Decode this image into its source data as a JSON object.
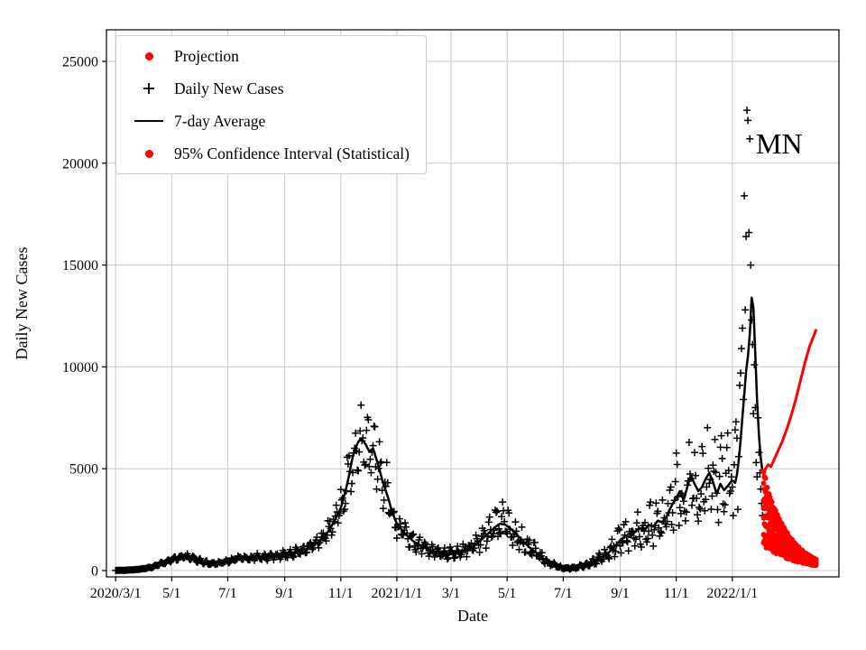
{
  "figure": {
    "annotation": "MN",
    "xlabel": "Date",
    "ylabel": "Daily New Cases",
    "background": "#ffffff"
  },
  "legend": {
    "items": [
      {
        "label": "Projection",
        "marker": "red-dot"
      },
      {
        "label": "Daily New Cases",
        "marker": "black-plus"
      },
      {
        "label": "7-day Average",
        "marker": "black-line"
      },
      {
        "label": "95% Confidence Interval (Statistical)",
        "marker": "red-dot"
      }
    ]
  },
  "chart_data": {
    "type": "line+scatter",
    "title": "",
    "xlabel": "Date",
    "ylabel": "Daily New Cases",
    "annotation": "MN",
    "x_unit": "days_since_2020-03-01",
    "xlim_days": [
      -10,
      787
    ],
    "ylim": [
      -310,
      26550
    ],
    "grid": true,
    "legend_position": "upper-left",
    "colors": {
      "daily_cases": "#000000",
      "seven_day_average": "#000000",
      "projection": "#ff0000",
      "confidence_interval": "#ff0000",
      "grid": "#c8c8c8",
      "axes": "#000000"
    },
    "x_ticks": [
      {
        "day": 0,
        "label": "2020/3/1"
      },
      {
        "day": 61,
        "label": "5/1"
      },
      {
        "day": 122,
        "label": "7/1"
      },
      {
        "day": 184,
        "label": "9/1"
      },
      {
        "day": 245,
        "label": "11/1"
      },
      {
        "day": 306,
        "label": "2021/1/1"
      },
      {
        "day": 365,
        "label": "3/1"
      },
      {
        "day": 426,
        "label": "5/1"
      },
      {
        "day": 487,
        "label": "7/1"
      },
      {
        "day": 549,
        "label": "9/1"
      },
      {
        "day": 610,
        "label": "11/1"
      },
      {
        "day": 671,
        "label": "2022/1/1"
      }
    ],
    "y_ticks": [
      0,
      5000,
      10000,
      15000,
      20000,
      25000
    ],
    "series": [
      {
        "name": "7-day Average",
        "style": "line",
        "color": "#000000",
        "control_points": [
          [
            0,
            5
          ],
          [
            10,
            15
          ],
          [
            20,
            40
          ],
          [
            30,
            90
          ],
          [
            40,
            180
          ],
          [
            50,
            350
          ],
          [
            58,
            500
          ],
          [
            68,
            640
          ],
          [
            75,
            700
          ],
          [
            82,
            620
          ],
          [
            90,
            500
          ],
          [
            98,
            390
          ],
          [
            105,
            330
          ],
          [
            112,
            380
          ],
          [
            122,
            450
          ],
          [
            130,
            560
          ],
          [
            138,
            650
          ],
          [
            146,
            600
          ],
          [
            154,
            690
          ],
          [
            162,
            640
          ],
          [
            170,
            700
          ],
          [
            177,
            740
          ],
          [
            184,
            790
          ],
          [
            192,
            850
          ],
          [
            200,
            950
          ],
          [
            208,
            1060
          ],
          [
            216,
            1260
          ],
          [
            224,
            1520
          ],
          [
            231,
            1900
          ],
          [
            237,
            2350
          ],
          [
            245,
            3050
          ],
          [
            252,
            4250
          ],
          [
            258,
            5600
          ],
          [
            263,
            6250
          ],
          [
            267,
            6500
          ],
          [
            272,
            6200
          ],
          [
            276,
            5850
          ],
          [
            280,
            6000
          ],
          [
            285,
            5300
          ],
          [
            291,
            4300
          ],
          [
            297,
            3500
          ],
          [
            301,
            2850
          ],
          [
            306,
            2300
          ],
          [
            315,
            1800
          ],
          [
            325,
            1400
          ],
          [
            335,
            1150
          ],
          [
            345,
            950
          ],
          [
            355,
            880
          ],
          [
            365,
            850
          ],
          [
            375,
            920
          ],
          [
            385,
            1100
          ],
          [
            395,
            1400
          ],
          [
            405,
            1800
          ],
          [
            412,
            2100
          ],
          [
            418,
            2300
          ],
          [
            424,
            2250
          ],
          [
            430,
            2050
          ],
          [
            440,
            1600
          ],
          [
            450,
            1150
          ],
          [
            460,
            780
          ],
          [
            470,
            430
          ],
          [
            480,
            200
          ],
          [
            487,
            130
          ],
          [
            495,
            110
          ],
          [
            505,
            190
          ],
          [
            515,
            320
          ],
          [
            525,
            520
          ],
          [
            535,
            820
          ],
          [
            542,
            1120
          ],
          [
            549,
            1500
          ],
          [
            555,
            1700
          ],
          [
            560,
            1640
          ],
          [
            565,
            1900
          ],
          [
            570,
            2080
          ],
          [
            575,
            1950
          ],
          [
            580,
            2250
          ],
          [
            585,
            2150
          ],
          [
            590,
            2450
          ],
          [
            595,
            2350
          ],
          [
            600,
            2700
          ],
          [
            605,
            3200
          ],
          [
            610,
            3550
          ],
          [
            614,
            3900
          ],
          [
            618,
            3450
          ],
          [
            622,
            4100
          ],
          [
            626,
            4650
          ],
          [
            630,
            4250
          ],
          [
            634,
            3900
          ],
          [
            638,
            4100
          ],
          [
            642,
            4500
          ],
          [
            646,
            4800
          ],
          [
            650,
            4350
          ],
          [
            654,
            3750
          ],
          [
            658,
            4250
          ],
          [
            662,
            3950
          ],
          [
            666,
            4150
          ],
          [
            671,
            4450
          ],
          [
            674,
            4300
          ],
          [
            677,
            4900
          ],
          [
            680,
            6400
          ],
          [
            683,
            8100
          ],
          [
            686,
            9800
          ],
          [
            688,
            10500
          ],
          [
            690,
            11600
          ],
          [
            692,
            13400
          ],
          [
            694,
            12900
          ],
          [
            696,
            10600
          ],
          [
            698,
            8300
          ],
          [
            700,
            6600
          ],
          [
            702,
            5500
          ],
          [
            704,
            4800
          ]
        ]
      },
      {
        "name": "Daily New Cases",
        "style": "plus-scatter",
        "color": "#000000",
        "generated_from": "7-day average with weekly and random variation",
        "noise": {
          "seed": 1337,
          "start_day": 0,
          "end_day": 668,
          "weekly_amp_base": 0.12,
          "weekly_amp_slope": 0.00032,
          "rand_amp_base": 0.08,
          "rand_amp_slope": 0.00028,
          "weekly_phase": 0.8
        },
        "explicit_points": [
          [
            669,
            3900
          ],
          [
            670,
            4600
          ],
          [
            671,
            4100
          ],
          [
            672,
            2700
          ],
          [
            673,
            5200
          ],
          [
            674,
            6900
          ],
          [
            675,
            7300
          ],
          [
            676,
            6500
          ],
          [
            677,
            3000
          ],
          [
            678,
            5600
          ],
          [
            679,
            9100
          ],
          [
            680,
            9700
          ],
          [
            681,
            10900
          ],
          [
            682,
            11900
          ],
          [
            683,
            8400
          ],
          [
            684,
            18400
          ],
          [
            685,
            12800
          ],
          [
            686,
            16400
          ],
          [
            687,
            22600
          ],
          [
            688,
            22100
          ],
          [
            689,
            16600
          ],
          [
            690,
            21200
          ],
          [
            691,
            15000
          ],
          [
            692,
            12300
          ],
          [
            693,
            11100
          ],
          [
            694,
            7700
          ],
          [
            695,
            10100
          ],
          [
            696,
            8000
          ],
          [
            697,
            5300
          ],
          [
            698,
            4600
          ],
          [
            699,
            7500
          ],
          [
            700,
            5800
          ],
          [
            701,
            4800
          ],
          [
            702,
            4000
          ],
          [
            703,
            3300
          ],
          [
            704,
            2700
          ]
        ]
      },
      {
        "name": "Projection",
        "style": "line",
        "color": "#ff0000",
        "points": [
          [
            703,
            4900
          ],
          [
            705,
            4700
          ],
          [
            707,
            5000
          ],
          [
            710,
            5200
          ],
          [
            713,
            5100
          ],
          [
            716,
            5400
          ],
          [
            720,
            5800
          ],
          [
            725,
            6300
          ],
          [
            730,
            6900
          ],
          [
            735,
            7600
          ],
          [
            740,
            8400
          ],
          [
            745,
            9300
          ],
          [
            750,
            10200
          ],
          [
            755,
            11000
          ],
          [
            762,
            11800
          ]
        ]
      },
      {
        "name": "95% Confidence Interval (Statistical)",
        "style": "dot-band",
        "color": "#ff0000",
        "band": {
          "start_day": 705,
          "end_day": 762,
          "upper_start": 4700,
          "upper_end": 550,
          "lower_start": 1400,
          "lower_end": 250,
          "rows": 7,
          "dot_radius": 3,
          "jitter_seed": 77
        }
      }
    ]
  }
}
